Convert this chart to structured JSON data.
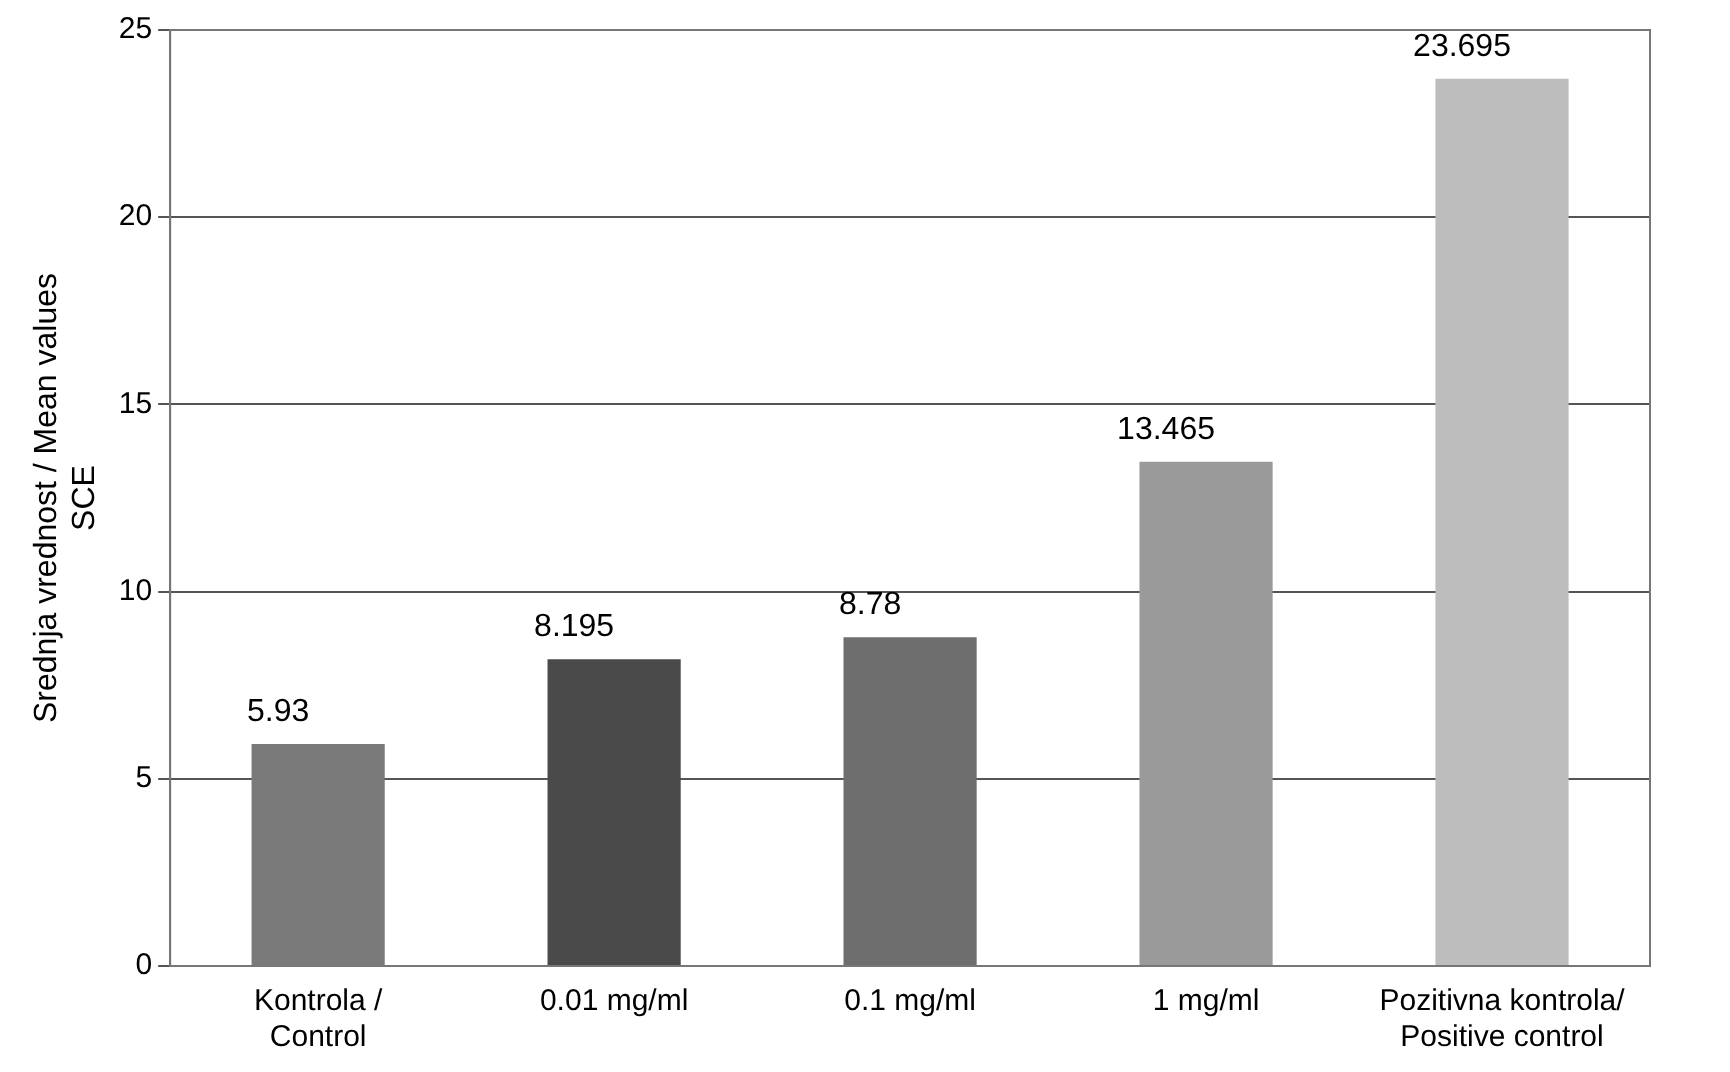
{
  "chart_data": {
    "type": "bar",
    "ylabel": "Srednja vrednost / Mean values SCE",
    "categories": [
      "Kontrola / Control",
      "0.01 mg/ml",
      "0.1 mg/ml",
      "1 mg/ml",
      "Pozitivna kontrola/ Positive control"
    ],
    "values": [
      5.93,
      8.195,
      8.78,
      13.465,
      23.695
    ],
    "colors": [
      "#7a7a7a",
      "#4a4a4a",
      "#6e6e6e",
      "#9a9a9a",
      "#bdbdbd"
    ],
    "ylim": [
      0,
      25
    ],
    "yticks": [
      0,
      5,
      10,
      15,
      20,
      25
    ],
    "grid": "y",
    "data_labels": true,
    "legend": false
  }
}
